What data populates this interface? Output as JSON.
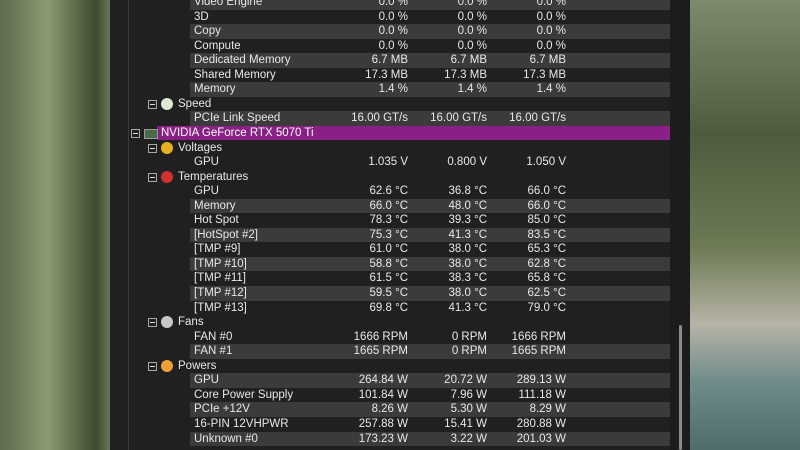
{
  "top_rows": [
    {
      "label": "Video Engine",
      "values": [
        "0.0 %",
        "0.0 %",
        "0.0 %"
      ]
    },
    {
      "label": "3D",
      "values": [
        "0.0 %",
        "0.0 %",
        "0.0 %"
      ]
    },
    {
      "label": "Copy",
      "values": [
        "0.0 %",
        "0.0 %",
        "0.0 %"
      ]
    },
    {
      "label": "Compute",
      "values": [
        "0.0 %",
        "0.0 %",
        "0.0 %"
      ]
    },
    {
      "label": "Dedicated Memory",
      "values": [
        "6.7 MB",
        "6.7 MB",
        "6.7 MB"
      ]
    },
    {
      "label": "Shared Memory",
      "values": [
        "17.3 MB",
        "17.3 MB",
        "17.3 MB"
      ]
    },
    {
      "label": "Memory",
      "values": [
        "1.4 %",
        "1.4 %",
        "1.4 %"
      ]
    }
  ],
  "groups": [
    {
      "label": "Speed",
      "rows": [
        {
          "label": "PCIe Link Speed",
          "values": [
            "16.00 GT/s",
            "16.00 GT/s",
            "16.00 GT/s"
          ]
        }
      ]
    }
  ],
  "device": {
    "label": "NVIDIA GeForce RTX 5070 Ti",
    "groups": [
      {
        "label": "Voltages",
        "rows": [
          {
            "label": "GPU",
            "values": [
              "1.035 V",
              "0.800 V",
              "1.050 V"
            ]
          }
        ]
      },
      {
        "label": "Temperatures",
        "rows": [
          {
            "label": "GPU",
            "values": [
              "62.6 °C",
              "36.8 °C",
              "66.0 °C"
            ]
          },
          {
            "label": "Memory",
            "values": [
              "66.0 °C",
              "48.0 °C",
              "66.0 °C"
            ]
          },
          {
            "label": "Hot Spot",
            "values": [
              "78.3 °C",
              "39.3 °C",
              "85.0 °C"
            ]
          },
          {
            "label": "[HotSpot #2]",
            "values": [
              "75.3 °C",
              "41.3 °C",
              "83.5 °C"
            ]
          },
          {
            "label": "[TMP #9]",
            "values": [
              "61.0 °C",
              "38.0 °C",
              "65.3 °C"
            ]
          },
          {
            "label": "[TMP #10]",
            "values": [
              "58.8 °C",
              "38.0 °C",
              "62.8 °C"
            ]
          },
          {
            "label": "[TMP #11]",
            "values": [
              "61.5 °C",
              "38.3 °C",
              "65.8 °C"
            ]
          },
          {
            "label": "[TMP #12]",
            "values": [
              "59.5 °C",
              "38.0 °C",
              "62.5 °C"
            ]
          },
          {
            "label": "[TMP #13]",
            "values": [
              "69.8 °C",
              "41.3 °C",
              "79.0 °C"
            ]
          }
        ]
      },
      {
        "label": "Fans",
        "rows": [
          {
            "label": "FAN #0",
            "values": [
              "1666 RPM",
              "0 RPM",
              "1666 RPM"
            ]
          },
          {
            "label": "FAN #1",
            "values": [
              "1665 RPM",
              "0 RPM",
              "1665 RPM"
            ]
          }
        ]
      },
      {
        "label": "Powers",
        "rows": [
          {
            "label": "GPU",
            "values": [
              "264.84 W",
              "20.72 W",
              "289.13 W"
            ]
          },
          {
            "label": "Core Power Supply",
            "values": [
              "101.84 W",
              "7.96 W",
              "111.18 W"
            ]
          },
          {
            "label": "PCIe +12V",
            "values": [
              "8.26 W",
              "5.30 W",
              "8.29 W"
            ]
          },
          {
            "label": "16-PIN 12VHPWR",
            "values": [
              "257.88 W",
              "15.41 W",
              "280.88 W"
            ]
          },
          {
            "label": "Unknown #0",
            "values": [
              "173.23 W",
              "3.22 W",
              "201.03 W"
            ]
          }
        ]
      }
    ]
  }
}
